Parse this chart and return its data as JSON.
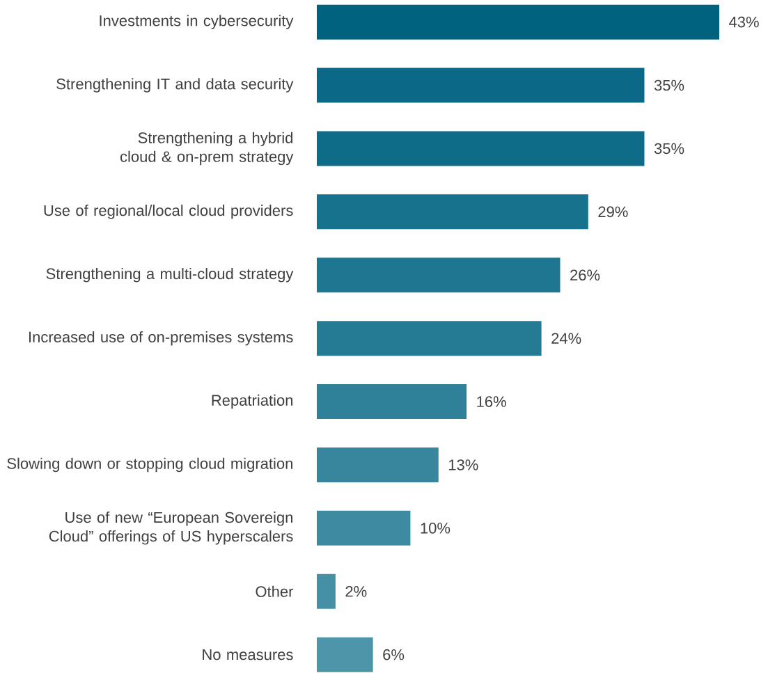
{
  "chart_data": {
    "type": "bar",
    "orientation": "horizontal",
    "categories": [
      "Investments in cybersecurity",
      "Strengthening IT and data security",
      "Strengthening a hybrid cloud & on-prem strategy",
      "Use of regional/local cloud providers",
      "Strengthening a multi-cloud strategy",
      "Increased use of on-premises systems",
      "Repatriation",
      "Slowing down or stopping cloud migration",
      "Use of new “European Sovereign Cloud” offerings of US hyperscalers",
      "Other",
      "No measures"
    ],
    "values": [
      43,
      35,
      35,
      29,
      26,
      24,
      16,
      13,
      10,
      2,
      6
    ],
    "value_labels": [
      "43%",
      "35%",
      "35%",
      "29%",
      "26%",
      "24%",
      "16%",
      "13%",
      "10%",
      "2%",
      "6%"
    ],
    "colors": [
      "#00627f",
      "#0b6987",
      "#0f6c89",
      "#17728d",
      "#1f7690",
      "#257b94",
      "#2f8099",
      "#37869d",
      "#3e8aa0",
      "#4690a5",
      "#4e95aa"
    ]
  }
}
